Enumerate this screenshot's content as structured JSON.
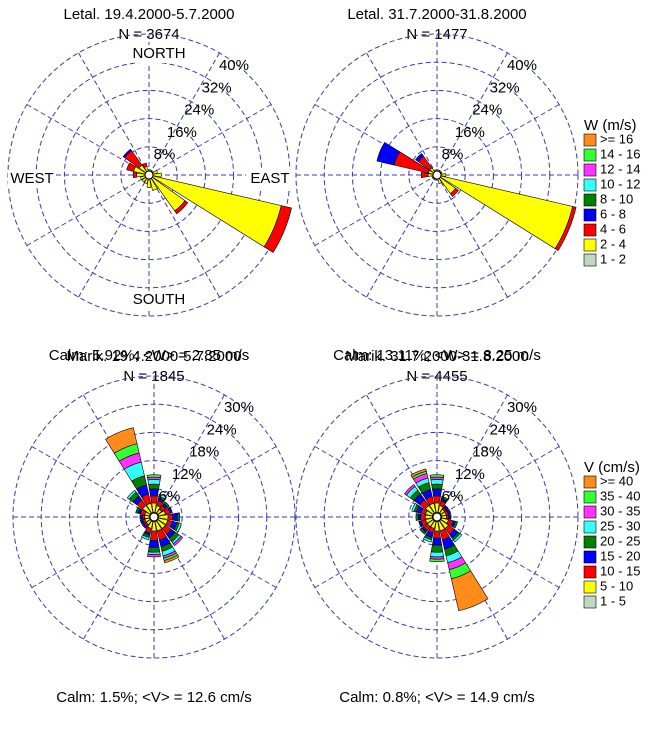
{
  "chart_data": [
    {
      "type": "wind_rose",
      "title": "Letal. 19.4.2000-5.7.2000",
      "subtitle": "N = 3674",
      "footer": "Calm: 5.92%; <W> = 2.85 m/s",
      "direction_labels": [
        "NORTH",
        "EAST",
        "SOUTH",
        "WEST"
      ],
      "categories": [
        null,
        null,
        null,
        null,
        null,
        null,
        null,
        null,
        null,
        null,
        null,
        null,
        null,
        null,
        null,
        null
      ],
      "rlim": [
        0,
        40
      ],
      "rticks": [
        {
          "value": 8,
          "label": "8%"
        },
        {
          "value": 16,
          "label": "16%"
        },
        {
          "value": 24,
          "label": "24%"
        },
        {
          "value": 32,
          "label": "32%"
        },
        {
          "value": 40,
          "label": "40%"
        }
      ],
      "series": [
        {
          "color": "#ff8c1a",
          "values": [
            0,
            0,
            0,
            0,
            0,
            0,
            0,
            0,
            0,
            0,
            0,
            0,
            0,
            0,
            0,
            0
          ]
        },
        {
          "color": "#33ff33",
          "values": [
            0,
            0,
            0,
            0,
            0,
            0,
            0,
            0,
            0,
            0,
            0,
            0,
            0,
            0,
            0,
            0
          ]
        },
        {
          "color": "#ff33ff",
          "values": [
            0,
            0,
            0,
            0,
            0,
            0,
            0,
            0,
            0,
            0,
            0,
            0,
            0,
            0,
            0,
            0
          ]
        },
        {
          "color": "#33ffff",
          "values": [
            0,
            0,
            0,
            0,
            0,
            0,
            0,
            0,
            0,
            0,
            0,
            0,
            0,
            0,
            0,
            0
          ]
        },
        {
          "color": "#008000",
          "values": [
            0,
            0,
            0,
            0,
            0,
            0,
            0,
            0,
            0,
            0,
            0,
            0,
            0,
            0,
            0,
            0
          ]
        },
        {
          "color": "#0000ff",
          "values": [
            0,
            0,
            0,
            0,
            0,
            0,
            0,
            0,
            0,
            0,
            0,
            0,
            0,
            0,
            0.5,
            0
          ]
        },
        {
          "color": "#ff0000",
          "values": [
            0,
            0,
            0,
            0,
            0,
            3,
            1,
            0,
            0,
            0,
            0,
            0,
            1,
            2,
            5,
            1
          ]
        },
        {
          "color": "#ffff00",
          "values": [
            1,
            1,
            1,
            2,
            3,
            38,
            12,
            4,
            3,
            2,
            2,
            2,
            3,
            4,
            3,
            2
          ]
        },
        {
          "color": "#c0d8c0",
          "values": [
            0.5,
            0.5,
            0.5,
            0.5,
            0.5,
            0.5,
            0.5,
            0.5,
            0.5,
            0.5,
            0.5,
            0.5,
            0.5,
            0.5,
            0.5,
            0.5
          ]
        }
      ]
    },
    {
      "type": "wind_rose",
      "title": "Letal. 31.7.2000-31.8.2000",
      "subtitle": "N = 1477",
      "footer": "Calm: 13.11%; <W> = 8.25 m/s",
      "legend_title": "W (m/s)",
      "categories": [
        null,
        null,
        null,
        null,
        null,
        null,
        null,
        null,
        null,
        null,
        null,
        null,
        null,
        null,
        null,
        null
      ],
      "rlim": [
        0,
        40
      ],
      "rticks": [
        {
          "value": 8,
          "label": "8%"
        },
        {
          "value": 16,
          "label": "16%"
        },
        {
          "value": 24,
          "label": "24%"
        },
        {
          "value": 32,
          "label": "32%"
        },
        {
          "value": 40,
          "label": "40%"
        }
      ],
      "series": [
        {
          "name": ">= 16",
          "color": "#ff8c1a",
          "values": [
            0,
            0,
            0,
            0,
            0,
            0,
            0,
            0,
            0,
            0,
            0,
            0,
            0,
            0,
            0,
            0
          ]
        },
        {
          "name": "14 - 16",
          "color": "#33ff33",
          "values": [
            0,
            0,
            0,
            0,
            0,
            0,
            0,
            0,
            0,
            0,
            0,
            0,
            0,
            0,
            0,
            0
          ]
        },
        {
          "name": "12 - 14",
          "color": "#ff33ff",
          "values": [
            0,
            0,
            0,
            0,
            0,
            0,
            0,
            0,
            0,
            0,
            0,
            0,
            0,
            0,
            0,
            0
          ]
        },
        {
          "name": "10 - 12",
          "color": "#33ffff",
          "values": [
            0,
            0,
            0,
            0,
            0,
            0,
            0,
            0,
            0,
            0,
            0,
            0,
            0,
            0,
            0,
            0
          ]
        },
        {
          "name": "8 - 10",
          "color": "#008000",
          "values": [
            0,
            0,
            0,
            0,
            0,
            0,
            0,
            0,
            0,
            0,
            0,
            0,
            0,
            0,
            0,
            0
          ]
        },
        {
          "name": "6 - 8",
          "color": "#0000ff",
          "values": [
            0,
            0,
            0,
            0,
            0,
            0,
            0,
            0,
            0,
            0,
            0,
            0,
            0,
            5,
            1,
            0
          ]
        },
        {
          "name": "4 - 6",
          "color": "#ff0000",
          "values": [
            0,
            0,
            0,
            0,
            0,
            1,
            1,
            0,
            0,
            0,
            0,
            0,
            2,
            10,
            4,
            0
          ]
        },
        {
          "name": "2 - 4",
          "color": "#ffff00",
          "values": [
            1,
            1,
            1,
            1,
            2,
            39,
            6,
            2,
            1,
            1,
            1,
            1,
            2,
            2,
            2,
            1
          ]
        },
        {
          "name": "1 - 2",
          "color": "#c0d8c0",
          "values": [
            0.5,
            0.5,
            0.5,
            0.5,
            0.5,
            0.5,
            0.5,
            0.5,
            0.5,
            0.5,
            0.5,
            0.5,
            0.5,
            0.5,
            0.5,
            0.5
          ]
        }
      ]
    },
    {
      "type": "wind_rose",
      "title": "Marik. 19.4.2000-5.7.2000",
      "subtitle": "N = 1845",
      "footer": "Calm: 1.5%; <V> = 12.6 cm/s",
      "categories": [
        null,
        null,
        null,
        null,
        null,
        null,
        null,
        null,
        null,
        null,
        null,
        null,
        null,
        null,
        null,
        null
      ],
      "rlim": [
        0,
        30
      ],
      "rticks": [
        {
          "value": 6,
          "label": "6%"
        },
        {
          "value": 12,
          "label": "12%"
        },
        {
          "value": 18,
          "label": "18%"
        },
        {
          "value": 24,
          "label": "24%"
        },
        {
          "value": 30,
          "label": "30%"
        }
      ],
      "series": [
        {
          "color": "#ff8c1a",
          "values": [
            0,
            0,
            0,
            0,
            0,
            0,
            0,
            0.5,
            0,
            0,
            0,
            0,
            0,
            0,
            0,
            3.5
          ]
        },
        {
          "color": "#33ff33",
          "values": [
            0.5,
            0,
            0,
            0,
            0,
            0,
            0,
            0.5,
            0,
            0,
            0,
            0,
            0,
            0,
            0,
            2
          ]
        },
        {
          "color": "#ff33ff",
          "values": [
            0.5,
            0,
            0,
            0,
            0,
            0,
            0.5,
            0.5,
            0.5,
            0,
            0,
            0,
            0,
            0,
            0,
            2
          ]
        },
        {
          "color": "#33ffff",
          "values": [
            1,
            0.5,
            0,
            0,
            0,
            0.5,
            0.5,
            1,
            0.5,
            0.5,
            0,
            0,
            0,
            0,
            0.5,
            3
          ]
        },
        {
          "color": "#008000",
          "values": [
            1,
            0.5,
            0.5,
            0,
            0.5,
            0.5,
            1,
            1,
            1,
            0.5,
            0,
            0,
            0,
            0.5,
            1,
            2
          ]
        },
        {
          "color": "#0000ff",
          "values": [
            1.5,
            0.5,
            0.5,
            0.5,
            1,
            1,
            1,
            1.5,
            1.5,
            0.5,
            0.5,
            0.5,
            0.5,
            0.5,
            1,
            2
          ]
        },
        {
          "color": "#ff0000",
          "values": [
            1.5,
            1,
            1,
            1,
            1,
            1,
            1.5,
            2,
            2,
            1,
            0.5,
            0.5,
            0.5,
            1,
            1.5,
            2
          ]
        },
        {
          "color": "#ffff00",
          "values": [
            2,
            1.5,
            1,
            1.5,
            2,
            2,
            2,
            2,
            2,
            1.5,
            1,
            1,
            1,
            1,
            2,
            2
          ]
        },
        {
          "color": "#c0d8c0",
          "values": [
            1,
            1,
            1,
            1,
            1,
            1,
            1,
            1,
            1,
            1,
            1,
            1,
            1,
            1,
            1,
            1
          ]
        }
      ]
    },
    {
      "type": "wind_rose",
      "title": "Marik. 31.7.2000-31.8.2000",
      "subtitle": "N = 4455",
      "footer": "Calm: 0.8%; <V> = 14.9 cm/s",
      "legend_title": "V (cm/s)",
      "categories": [
        null,
        null,
        null,
        null,
        null,
        null,
        null,
        null,
        null,
        null,
        null,
        null,
        null,
        null,
        null,
        null
      ],
      "rlim": [
        0,
        30
      ],
      "rticks": [
        {
          "value": 6,
          "label": "6%"
        },
        {
          "value": 12,
          "label": "12%"
        },
        {
          "value": 18,
          "label": "18%"
        },
        {
          "value": 24,
          "label": "24%"
        },
        {
          "value": 30,
          "label": "30%"
        }
      ],
      "series": [
        {
          "name": ">= 40",
          "color": "#ff8c1a",
          "values": [
            0,
            0,
            0,
            0,
            0,
            0,
            0,
            7,
            0,
            0,
            0,
            0,
            0,
            0,
            0,
            0.5
          ]
        },
        {
          "name": "35 - 40",
          "color": "#33ff33",
          "values": [
            0.5,
            0,
            0,
            0,
            0,
            0,
            0,
            2,
            0.5,
            0,
            0,
            0,
            0,
            0,
            0,
            0.5
          ]
        },
        {
          "name": "30 - 35",
          "color": "#ff33ff",
          "values": [
            0.5,
            0,
            0,
            0,
            0,
            0,
            0,
            1.5,
            0.5,
            0,
            0,
            0,
            0,
            0,
            0.5,
            1
          ]
        },
        {
          "name": "25 - 30",
          "color": "#33ffff",
          "values": [
            1,
            0,
            0,
            0,
            0,
            0,
            0.5,
            1.5,
            1,
            0.5,
            0,
            0,
            0,
            0.5,
            1,
            1
          ]
        },
        {
          "name": "20 - 25",
          "color": "#008000",
          "values": [
            1,
            0.5,
            0,
            0,
            0,
            0.5,
            0.5,
            1.5,
            1.5,
            0.5,
            0.5,
            0,
            0.5,
            0.5,
            1,
            1.5
          ]
        },
        {
          "name": "15 - 20",
          "color": "#0000ff",
          "values": [
            1.5,
            0.5,
            0.5,
            0.5,
            0.5,
            0.5,
            1,
            2,
            1.5,
            1,
            0.5,
            0.5,
            0.5,
            1,
            1.5,
            1.5
          ]
        },
        {
          "name": "10 - 15",
          "color": "#ff0000",
          "values": [
            1.5,
            1,
            0.5,
            0.5,
            0.5,
            1,
            1.5,
            2,
            1.5,
            1,
            1,
            1,
            1,
            1,
            1.5,
            1.5
          ]
        },
        {
          "name": "5 - 10",
          "color": "#ffff00",
          "values": [
            2,
            1.5,
            1,
            1,
            1,
            1.5,
            2,
            2,
            2,
            1.5,
            1.5,
            1.5,
            1.5,
            1.5,
            2,
            2
          ]
        },
        {
          "name": "1 - 5",
          "color": "#c0d8c0",
          "values": [
            1,
            1,
            1,
            1,
            1,
            1,
            1,
            1,
            1,
            1,
            1,
            1,
            1,
            1,
            1,
            1
          ]
        }
      ]
    }
  ]
}
